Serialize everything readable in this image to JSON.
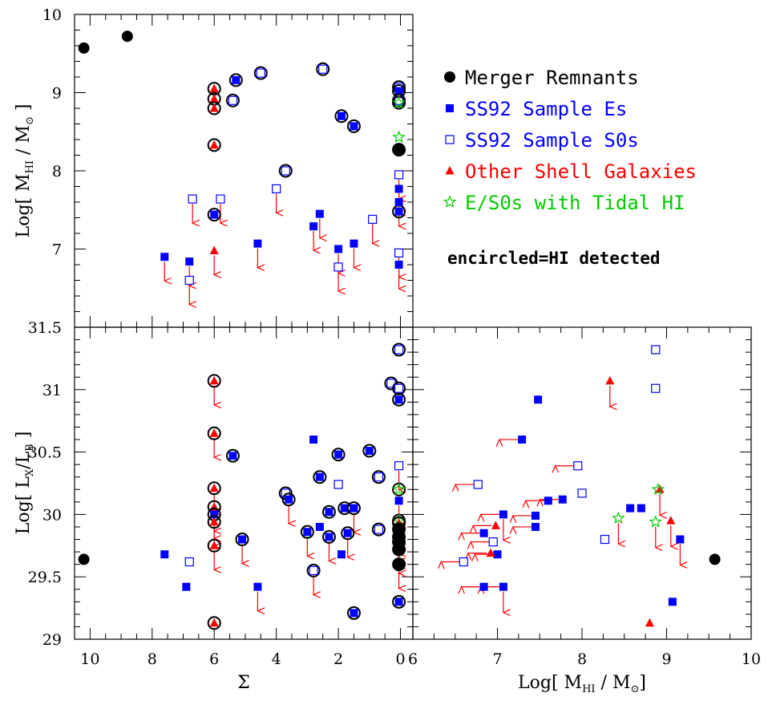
{
  "colors": {
    "merger": "#000000",
    "es": "#0000ff",
    "s0": "#0000ff",
    "shell": "#ff0000",
    "tidal": "#00cc00",
    "arrow": "#ff0000"
  },
  "legend": [
    {
      "label": "Merger Remnants",
      "symbol": "filled-circle",
      "color": "#000000"
    },
    {
      "label": "SS92 Sample Es",
      "symbol": "filled-square",
      "color": "#0000ff"
    },
    {
      "label": "SS92 Sample S0s",
      "symbol": "open-square",
      "color": "#0000ff"
    },
    {
      "label": "Other Shell Galaxies",
      "symbol": "filled-triangle",
      "color": "#ff0000"
    },
    {
      "label": "E/S0s with Tidal HI",
      "symbol": "open-star",
      "color": "#00cc00"
    }
  ],
  "note": "encircled=HI detected",
  "chart_data": [
    {
      "type": "scatter",
      "panel": "top-left",
      "xlabel": "",
      "ylabel": "Log[ M_HI / M_⊙ ]",
      "xlim": [
        10.5,
        -0.4
      ],
      "ylim": [
        6,
        10
      ],
      "xticks": [
        10,
        8,
        6,
        4,
        2,
        0
      ],
      "yticks": [
        7,
        8,
        9,
        10
      ],
      "ytick_labels": [
        "7",
        "8",
        "9",
        "10"
      ],
      "points": [
        {
          "x": 10.2,
          "y": 9.57,
          "cls": "merger",
          "enc": false,
          "up": false
        },
        {
          "x": 8.8,
          "y": 9.72,
          "cls": "merger",
          "enc": false,
          "up": false
        },
        {
          "x": 6,
          "y": 9.05,
          "cls": "shell",
          "enc": true,
          "up": false
        },
        {
          "x": 6,
          "y": 8.92,
          "cls": "shell",
          "enc": true,
          "up": false
        },
        {
          "x": 6,
          "y": 8.8,
          "cls": "shell",
          "enc": true,
          "up": false
        },
        {
          "x": 6,
          "y": 8.33,
          "cls": "shell",
          "enc": true,
          "up": false
        },
        {
          "x": 6,
          "y": 7.44,
          "cls": "es",
          "enc": true,
          "up": false
        },
        {
          "x": 6,
          "y": 6.98,
          "cls": "shell",
          "enc": false,
          "up": true
        },
        {
          "x": 5.3,
          "y": 9.16,
          "cls": "es",
          "enc": true,
          "up": false
        },
        {
          "x": 5.4,
          "y": 8.9,
          "cls": "s0",
          "enc": true,
          "up": false
        },
        {
          "x": 4.5,
          "y": 9.25,
          "cls": "s0",
          "enc": true,
          "up": false
        },
        {
          "x": 3.7,
          "y": 8.0,
          "cls": "s0",
          "enc": true,
          "up": false
        },
        {
          "x": 2.5,
          "y": 9.3,
          "cls": "s0",
          "enc": true,
          "up": false
        },
        {
          "x": 1.9,
          "y": 8.7,
          "cls": "es",
          "enc": true,
          "up": false
        },
        {
          "x": 1.5,
          "y": 8.57,
          "cls": "es",
          "enc": true,
          "up": false
        },
        {
          "x": 0.05,
          "y": 9.07,
          "cls": "s0",
          "enc": true,
          "up": false
        },
        {
          "x": 0.05,
          "y": 9.02,
          "cls": "es",
          "enc": true,
          "up": false
        },
        {
          "x": 0.05,
          "y": 8.9,
          "cls": "s0",
          "enc": true,
          "up": false
        },
        {
          "x": 0.05,
          "y": 8.87,
          "cls": "tidal",
          "enc": true,
          "up": false
        },
        {
          "x": 0.05,
          "y": 8.43,
          "cls": "tidal",
          "enc": false,
          "up": false
        },
        {
          "x": 0.05,
          "y": 8.27,
          "cls": "merger",
          "enc": true,
          "up": false
        },
        {
          "x": 0.05,
          "y": 7.48,
          "cls": "es",
          "enc": true,
          "up": false
        },
        {
          "x": 7.6,
          "y": 6.9,
          "cls": "es",
          "enc": false,
          "up": true
        },
        {
          "x": 6.8,
          "y": 6.84,
          "cls": "es",
          "enc": false,
          "up": true
        },
        {
          "x": 6.8,
          "y": 6.6,
          "cls": "s0",
          "enc": false,
          "up": true
        },
        {
          "x": 6.7,
          "y": 7.64,
          "cls": "s0",
          "enc": false,
          "up": true
        },
        {
          "x": 5.8,
          "y": 7.64,
          "cls": "s0",
          "enc": false,
          "up": true
        },
        {
          "x": 4.6,
          "y": 7.07,
          "cls": "es",
          "enc": false,
          "up": true
        },
        {
          "x": 4.0,
          "y": 7.77,
          "cls": "s0",
          "enc": false,
          "up": true
        },
        {
          "x": 2.6,
          "y": 7.45,
          "cls": "es",
          "enc": false,
          "up": true
        },
        {
          "x": 2.8,
          "y": 7.29,
          "cls": "es",
          "enc": false,
          "up": true
        },
        {
          "x": 2.0,
          "y": 7.0,
          "cls": "es",
          "enc": false,
          "up": true
        },
        {
          "x": 2.0,
          "y": 6.77,
          "cls": "s0",
          "enc": false,
          "up": true
        },
        {
          "x": 1.5,
          "y": 7.07,
          "cls": "es",
          "enc": false,
          "up": true
        },
        {
          "x": 0.9,
          "y": 7.38,
          "cls": "s0",
          "enc": false,
          "up": true
        },
        {
          "x": 0.05,
          "y": 7.95,
          "cls": "s0",
          "enc": false,
          "up": true
        },
        {
          "x": 0.05,
          "y": 7.77,
          "cls": "es",
          "enc": false,
          "up": true
        },
        {
          "x": 0.05,
          "y": 7.6,
          "cls": "es",
          "enc": false,
          "up": true
        },
        {
          "x": 0.05,
          "y": 6.95,
          "cls": "s0",
          "enc": false,
          "up": true
        },
        {
          "x": 0.05,
          "y": 6.8,
          "cls": "es",
          "enc": false,
          "up": true
        }
      ]
    },
    {
      "type": "scatter",
      "panel": "bottom-left",
      "xlabel": "Σ",
      "ylabel": "Log[ L_X / L_B ]",
      "xlim": [
        10.5,
        -0.4
      ],
      "ylim": [
        29,
        31.5
      ],
      "xticks": [
        10,
        8,
        6,
        4,
        2,
        0
      ],
      "yticks": [
        29,
        29.5,
        30,
        30.5,
        31,
        31.5
      ],
      "xtick_labels": [
        "10",
        "8",
        "6",
        "4",
        "2",
        "0"
      ],
      "ytick_labels": [
        "29",
        "29.5",
        "30",
        "30.5",
        "31",
        "31.5"
      ],
      "points": [
        {
          "x": 10.2,
          "y": 29.64,
          "cls": "merger",
          "enc": false,
          "up": false
        },
        {
          "x": 7.6,
          "y": 29.68,
          "cls": "es",
          "enc": false,
          "up": false
        },
        {
          "x": 6.9,
          "y": 29.42,
          "cls": "es",
          "enc": false,
          "up": false
        },
        {
          "x": 6.8,
          "y": 29.62,
          "cls": "s0",
          "enc": false,
          "up": false
        },
        {
          "x": 6,
          "y": 31.07,
          "cls": "shell",
          "enc": true,
          "up": true
        },
        {
          "x": 6,
          "y": 30.65,
          "cls": "shell",
          "enc": true,
          "up": true
        },
        {
          "x": 6,
          "y": 30.21,
          "cls": "shell",
          "enc": true,
          "up": true
        },
        {
          "x": 6,
          "y": 30.06,
          "cls": "shell",
          "enc": true,
          "up": true
        },
        {
          "x": 6,
          "y": 30.0,
          "cls": "es",
          "enc": true,
          "up": true
        },
        {
          "x": 6,
          "y": 29.94,
          "cls": "shell",
          "enc": true,
          "up": true
        },
        {
          "x": 6,
          "y": 29.75,
          "cls": "shell",
          "enc": true,
          "up": true
        },
        {
          "x": 6,
          "y": 29.13,
          "cls": "shell",
          "enc": true,
          "up": false
        },
        {
          "x": 5.4,
          "y": 30.47,
          "cls": "es",
          "enc": true,
          "up": false
        },
        {
          "x": 5.1,
          "y": 29.8,
          "cls": "es",
          "enc": true,
          "up": true
        },
        {
          "x": 4.6,
          "y": 29.42,
          "cls": "es",
          "enc": false,
          "up": true
        },
        {
          "x": 3.7,
          "y": 30.17,
          "cls": "s0",
          "enc": true,
          "up": false
        },
        {
          "x": 3.6,
          "y": 30.12,
          "cls": "es",
          "enc": true,
          "up": true
        },
        {
          "x": 3.0,
          "y": 29.86,
          "cls": "es",
          "enc": true,
          "up": true
        },
        {
          "x": 2.8,
          "y": 30.6,
          "cls": "es",
          "enc": false,
          "up": false
        },
        {
          "x": 2.8,
          "y": 29.55,
          "cls": "s0",
          "enc": true,
          "up": true
        },
        {
          "x": 2.6,
          "y": 30.3,
          "cls": "es",
          "enc": true,
          "up": false
        },
        {
          "x": 2.6,
          "y": 29.9,
          "cls": "es",
          "enc": false,
          "up": false
        },
        {
          "x": 2.3,
          "y": 30.02,
          "cls": "es",
          "enc": true,
          "up": false
        },
        {
          "x": 2.3,
          "y": 29.82,
          "cls": "es",
          "enc": true,
          "up": true
        },
        {
          "x": 2.0,
          "y": 30.48,
          "cls": "es",
          "enc": true,
          "up": false
        },
        {
          "x": 2.0,
          "y": 30.24,
          "cls": "s0",
          "enc": false,
          "up": false
        },
        {
          "x": 1.9,
          "y": 29.68,
          "cls": "es",
          "enc": false,
          "up": false
        },
        {
          "x": 1.8,
          "y": 30.05,
          "cls": "es",
          "enc": true,
          "up": false
        },
        {
          "x": 1.7,
          "y": 29.85,
          "cls": "es",
          "enc": true,
          "up": true
        },
        {
          "x": 1.5,
          "y": 30.05,
          "cls": "es",
          "enc": true,
          "up": true
        },
        {
          "x": 1.5,
          "y": 29.21,
          "cls": "es",
          "enc": true,
          "up": false
        },
        {
          "x": 1.0,
          "y": 30.51,
          "cls": "es",
          "enc": true,
          "up": false
        },
        {
          "x": 0.7,
          "y": 30.3,
          "cls": "s0",
          "enc": true,
          "up": false
        },
        {
          "x": 0.7,
          "y": 29.88,
          "cls": "s0",
          "enc": true,
          "up": false
        },
        {
          "x": 0.3,
          "y": 31.05,
          "cls": "s0",
          "enc": true,
          "up": false
        },
        {
          "x": 0.05,
          "y": 31.32,
          "cls": "s0",
          "enc": true,
          "up": false
        },
        {
          "x": 0.05,
          "y": 31.01,
          "cls": "s0",
          "enc": true,
          "up": false
        },
        {
          "x": 0.05,
          "y": 30.92,
          "cls": "es",
          "enc": true,
          "up": false
        },
        {
          "x": 0.05,
          "y": 30.39,
          "cls": "s0",
          "enc": false,
          "up": true
        },
        {
          "x": 0.05,
          "y": 30.2,
          "cls": "tidal",
          "enc": true,
          "up": false
        },
        {
          "x": 0.05,
          "y": 30.11,
          "cls": "es",
          "enc": false,
          "up": true
        },
        {
          "x": 0.05,
          "y": 29.95,
          "cls": "tidal",
          "enc": true,
          "up": false
        },
        {
          "x": 0.05,
          "y": 29.93,
          "cls": "shell",
          "enc": true,
          "up": true
        },
        {
          "x": 0.05,
          "y": 29.88,
          "cls": "merger",
          "enc": true,
          "up": true
        },
        {
          "x": 0.05,
          "y": 29.82,
          "cls": "merger",
          "enc": true,
          "up": true
        },
        {
          "x": 0.05,
          "y": 29.78,
          "cls": "merger",
          "enc": true,
          "up": true
        },
        {
          "x": 0.05,
          "y": 29.72,
          "cls": "merger",
          "enc": true,
          "up": true
        },
        {
          "x": 0.05,
          "y": 29.6,
          "cls": "merger",
          "enc": true,
          "up": true
        },
        {
          "x": 0.05,
          "y": 29.3,
          "cls": "es",
          "enc": true,
          "up": false
        }
      ]
    },
    {
      "type": "scatter",
      "panel": "bottom-right",
      "xlabel": "Log[ M_HI / M_⊙ ]",
      "ylabel": "",
      "xlim": [
        6,
        10
      ],
      "ylim": [
        29,
        31.5
      ],
      "xticks": [
        6,
        7,
        8,
        9,
        10
      ],
      "yticks": [
        29,
        29.5,
        30,
        30.5,
        31,
        31.5
      ],
      "xtick_labels": [
        "6",
        "7",
        "8",
        "9",
        "10"
      ],
      "points": [
        {
          "x": 9.57,
          "y": 29.64,
          "cls": "merger",
          "enc": false,
          "left": false,
          "down": false
        },
        {
          "x": 8.87,
          "y": 31.32,
          "cls": "s0",
          "enc": false,
          "left": false,
          "down": false
        },
        {
          "x": 8.87,
          "y": 31.01,
          "cls": "s0",
          "enc": false,
          "left": false,
          "down": false
        },
        {
          "x": 8.33,
          "y": 31.07,
          "cls": "shell",
          "enc": false,
          "left": false,
          "down": true
        },
        {
          "x": 7.48,
          "y": 30.92,
          "cls": "es",
          "enc": false,
          "left": false,
          "down": false
        },
        {
          "x": 7.29,
          "y": 30.6,
          "cls": "es",
          "enc": false,
          "left": true,
          "down": false
        },
        {
          "x": 6.77,
          "y": 30.24,
          "cls": "s0",
          "enc": false,
          "left": true,
          "down": false
        },
        {
          "x": 7.95,
          "y": 30.39,
          "cls": "s0",
          "enc": false,
          "left": true,
          "down": false
        },
        {
          "x": 8.0,
          "y": 30.17,
          "cls": "s0",
          "enc": false,
          "left": false,
          "down": false
        },
        {
          "x": 7.77,
          "y": 30.12,
          "cls": "es",
          "enc": false,
          "left": true,
          "down": false
        },
        {
          "x": 7.6,
          "y": 30.11,
          "cls": "es",
          "enc": false,
          "left": true,
          "down": false
        },
        {
          "x": 8.57,
          "y": 30.05,
          "cls": "es",
          "enc": false,
          "left": false,
          "down": false
        },
        {
          "x": 8.7,
          "y": 30.05,
          "cls": "es",
          "enc": false,
          "left": false,
          "down": false
        },
        {
          "x": 7.45,
          "y": 29.99,
          "cls": "es",
          "enc": false,
          "left": true,
          "down": false
        },
        {
          "x": 7.07,
          "y": 30.0,
          "cls": "es",
          "enc": false,
          "left": true,
          "down": true
        },
        {
          "x": 7.45,
          "y": 29.9,
          "cls": "es",
          "enc": false,
          "left": true,
          "down": false
        },
        {
          "x": 6.98,
          "y": 29.91,
          "cls": "shell",
          "enc": false,
          "left": true,
          "down": false
        },
        {
          "x": 6.84,
          "y": 29.85,
          "cls": "es",
          "enc": false,
          "left": true,
          "down": false
        },
        {
          "x": 6.95,
          "y": 29.78,
          "cls": "s0",
          "enc": false,
          "left": true,
          "down": false
        },
        {
          "x": 8.27,
          "y": 29.8,
          "cls": "s0",
          "enc": false,
          "left": false,
          "down": false
        },
        {
          "x": 8.43,
          "y": 29.97,
          "cls": "tidal",
          "enc": false,
          "left": false,
          "down": true
        },
        {
          "x": 8.92,
          "y": 30.2,
          "cls": "shell",
          "enc": false,
          "left": false,
          "down": true
        },
        {
          "x": 8.9,
          "y": 30.2,
          "cls": "tidal",
          "enc": false,
          "left": false,
          "down": false
        },
        {
          "x": 8.87,
          "y": 29.94,
          "cls": "tidal",
          "enc": false,
          "left": false,
          "down": true
        },
        {
          "x": 9.05,
          "y": 29.95,
          "cls": "shell",
          "enc": false,
          "left": false,
          "down": true
        },
        {
          "x": 9.16,
          "y": 29.8,
          "cls": "es",
          "enc": false,
          "left": false,
          "down": true
        },
        {
          "x": 7.0,
          "y": 29.68,
          "cls": "es",
          "enc": false,
          "left": true,
          "down": false
        },
        {
          "x": 6.92,
          "y": 29.69,
          "cls": "shell",
          "enc": false,
          "left": true,
          "down": false
        },
        {
          "x": 6.6,
          "y": 29.62,
          "cls": "s0",
          "enc": false,
          "left": true,
          "down": false
        },
        {
          "x": 6.84,
          "y": 29.42,
          "cls": "es",
          "enc": false,
          "left": true,
          "down": false
        },
        {
          "x": 7.07,
          "y": 29.42,
          "cls": "es",
          "enc": false,
          "left": true,
          "down": true
        },
        {
          "x": 9.07,
          "y": 29.3,
          "cls": "es",
          "enc": false,
          "left": false,
          "down": false
        },
        {
          "x": 8.8,
          "y": 29.13,
          "cls": "shell",
          "enc": false,
          "left": false,
          "down": false
        }
      ]
    }
  ]
}
